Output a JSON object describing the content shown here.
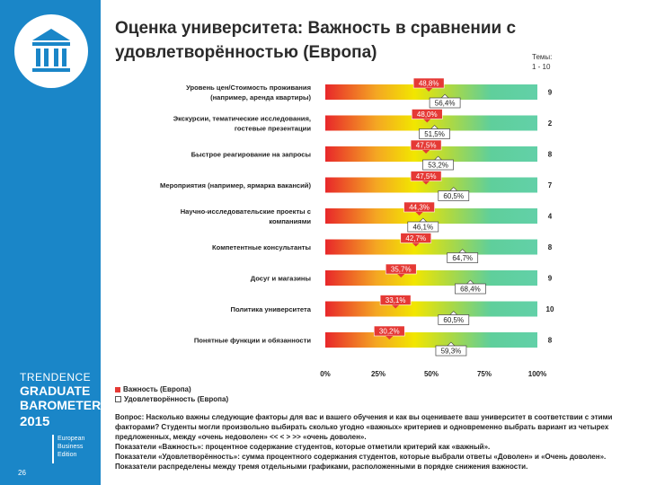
{
  "title": "Оценка университета: Важность в сравнении с удовлетворённостью (Европа)",
  "themes_header": [
    "Темы:",
    "1 - 10"
  ],
  "page_number": "26",
  "barometer": {
    "line1": "TRENDENCE",
    "line2": "GRADUATE",
    "line3": "BAROMETER",
    "year": "2015",
    "sub": [
      "European",
      "Business",
      "Edition"
    ]
  },
  "legend": {
    "importance_label": "Важность (Европа)",
    "satisfaction_label": "Удовлетворённость (Европа)",
    "importance_color": "#e53935",
    "satisfaction_color": "#ffffff"
  },
  "notes": [
    "Вопрос: Насколько важны следующие факторы для вас и вашего обучения и как вы оцениваете ваш университет в соответствии с этими факторами? Студенты могли произвольно выбирать сколько угодно «важных» критериев и одновременно выбрать вариант из четырех предложенных, между «очень недоволен» << < > >> «очень доволен».",
    "Показатели «Важность»: процентное содержание студентов, которые отметили критерий как «важный».",
    "Показатели «Удовлетворённость»: сумма процентного содержания студентов, которые выбрали ответы «Доволен» и «Очень доволен».",
    "Показатели распределены между тремя отдельными графиками, расположенными в порядке снижения важности."
  ],
  "chart_data": {
    "type": "bar",
    "title": "Оценка университета: Важность в сравнении с удовлетворённостью (Европа)",
    "xlim": [
      0,
      100
    ],
    "x_ticks": [
      "0%",
      "25%",
      "50%",
      "75%",
      "100%"
    ],
    "categories": [
      "Уровень цен/Стоимость проживания (например, аренда квартиры)",
      "Экскурсии, тематические исследования, гостевые презентации",
      "Быстрое реагирование на запросы",
      "Мероприятия (например, ярмарка вакансий)",
      "Научно-исследовательские проекты с компаниями",
      "Компетентные консультанты",
      "Досуг и магазины",
      "Политика университета",
      "Понятные функции и обязанности"
    ],
    "series": [
      {
        "name": "Важность (Европа)",
        "values": [
          48.8,
          48.0,
          47.5,
          47.5,
          44.3,
          42.7,
          35.7,
          33.1,
          30.2
        ],
        "labels": [
          "48,8%",
          "48,0%",
          "47,5%",
          "47,5%",
          "44,3%",
          "42,7%",
          "35,7%",
          "33,1%",
          "30,2%"
        ]
      },
      {
        "name": "Удовлетворённость (Европа)",
        "values": [
          56.4,
          51.5,
          53.2,
          60.5,
          46.1,
          64.7,
          68.4,
          60.5,
          59.3
        ],
        "labels": [
          "56,4%",
          "51,5%",
          "53,2%",
          "60,5%",
          "46,1%",
          "64,7%",
          "68,4%",
          "60,5%",
          "59,3%"
        ]
      }
    ],
    "theme_numbers": [
      "9",
      "2",
      "8",
      "7",
      "4",
      "8",
      "9",
      "10",
      "8"
    ],
    "gradient": [
      "#e8272a",
      "#f4a623",
      "#f2e600",
      "#a8d848",
      "#5fcf9b",
      "#62d0a8"
    ]
  }
}
